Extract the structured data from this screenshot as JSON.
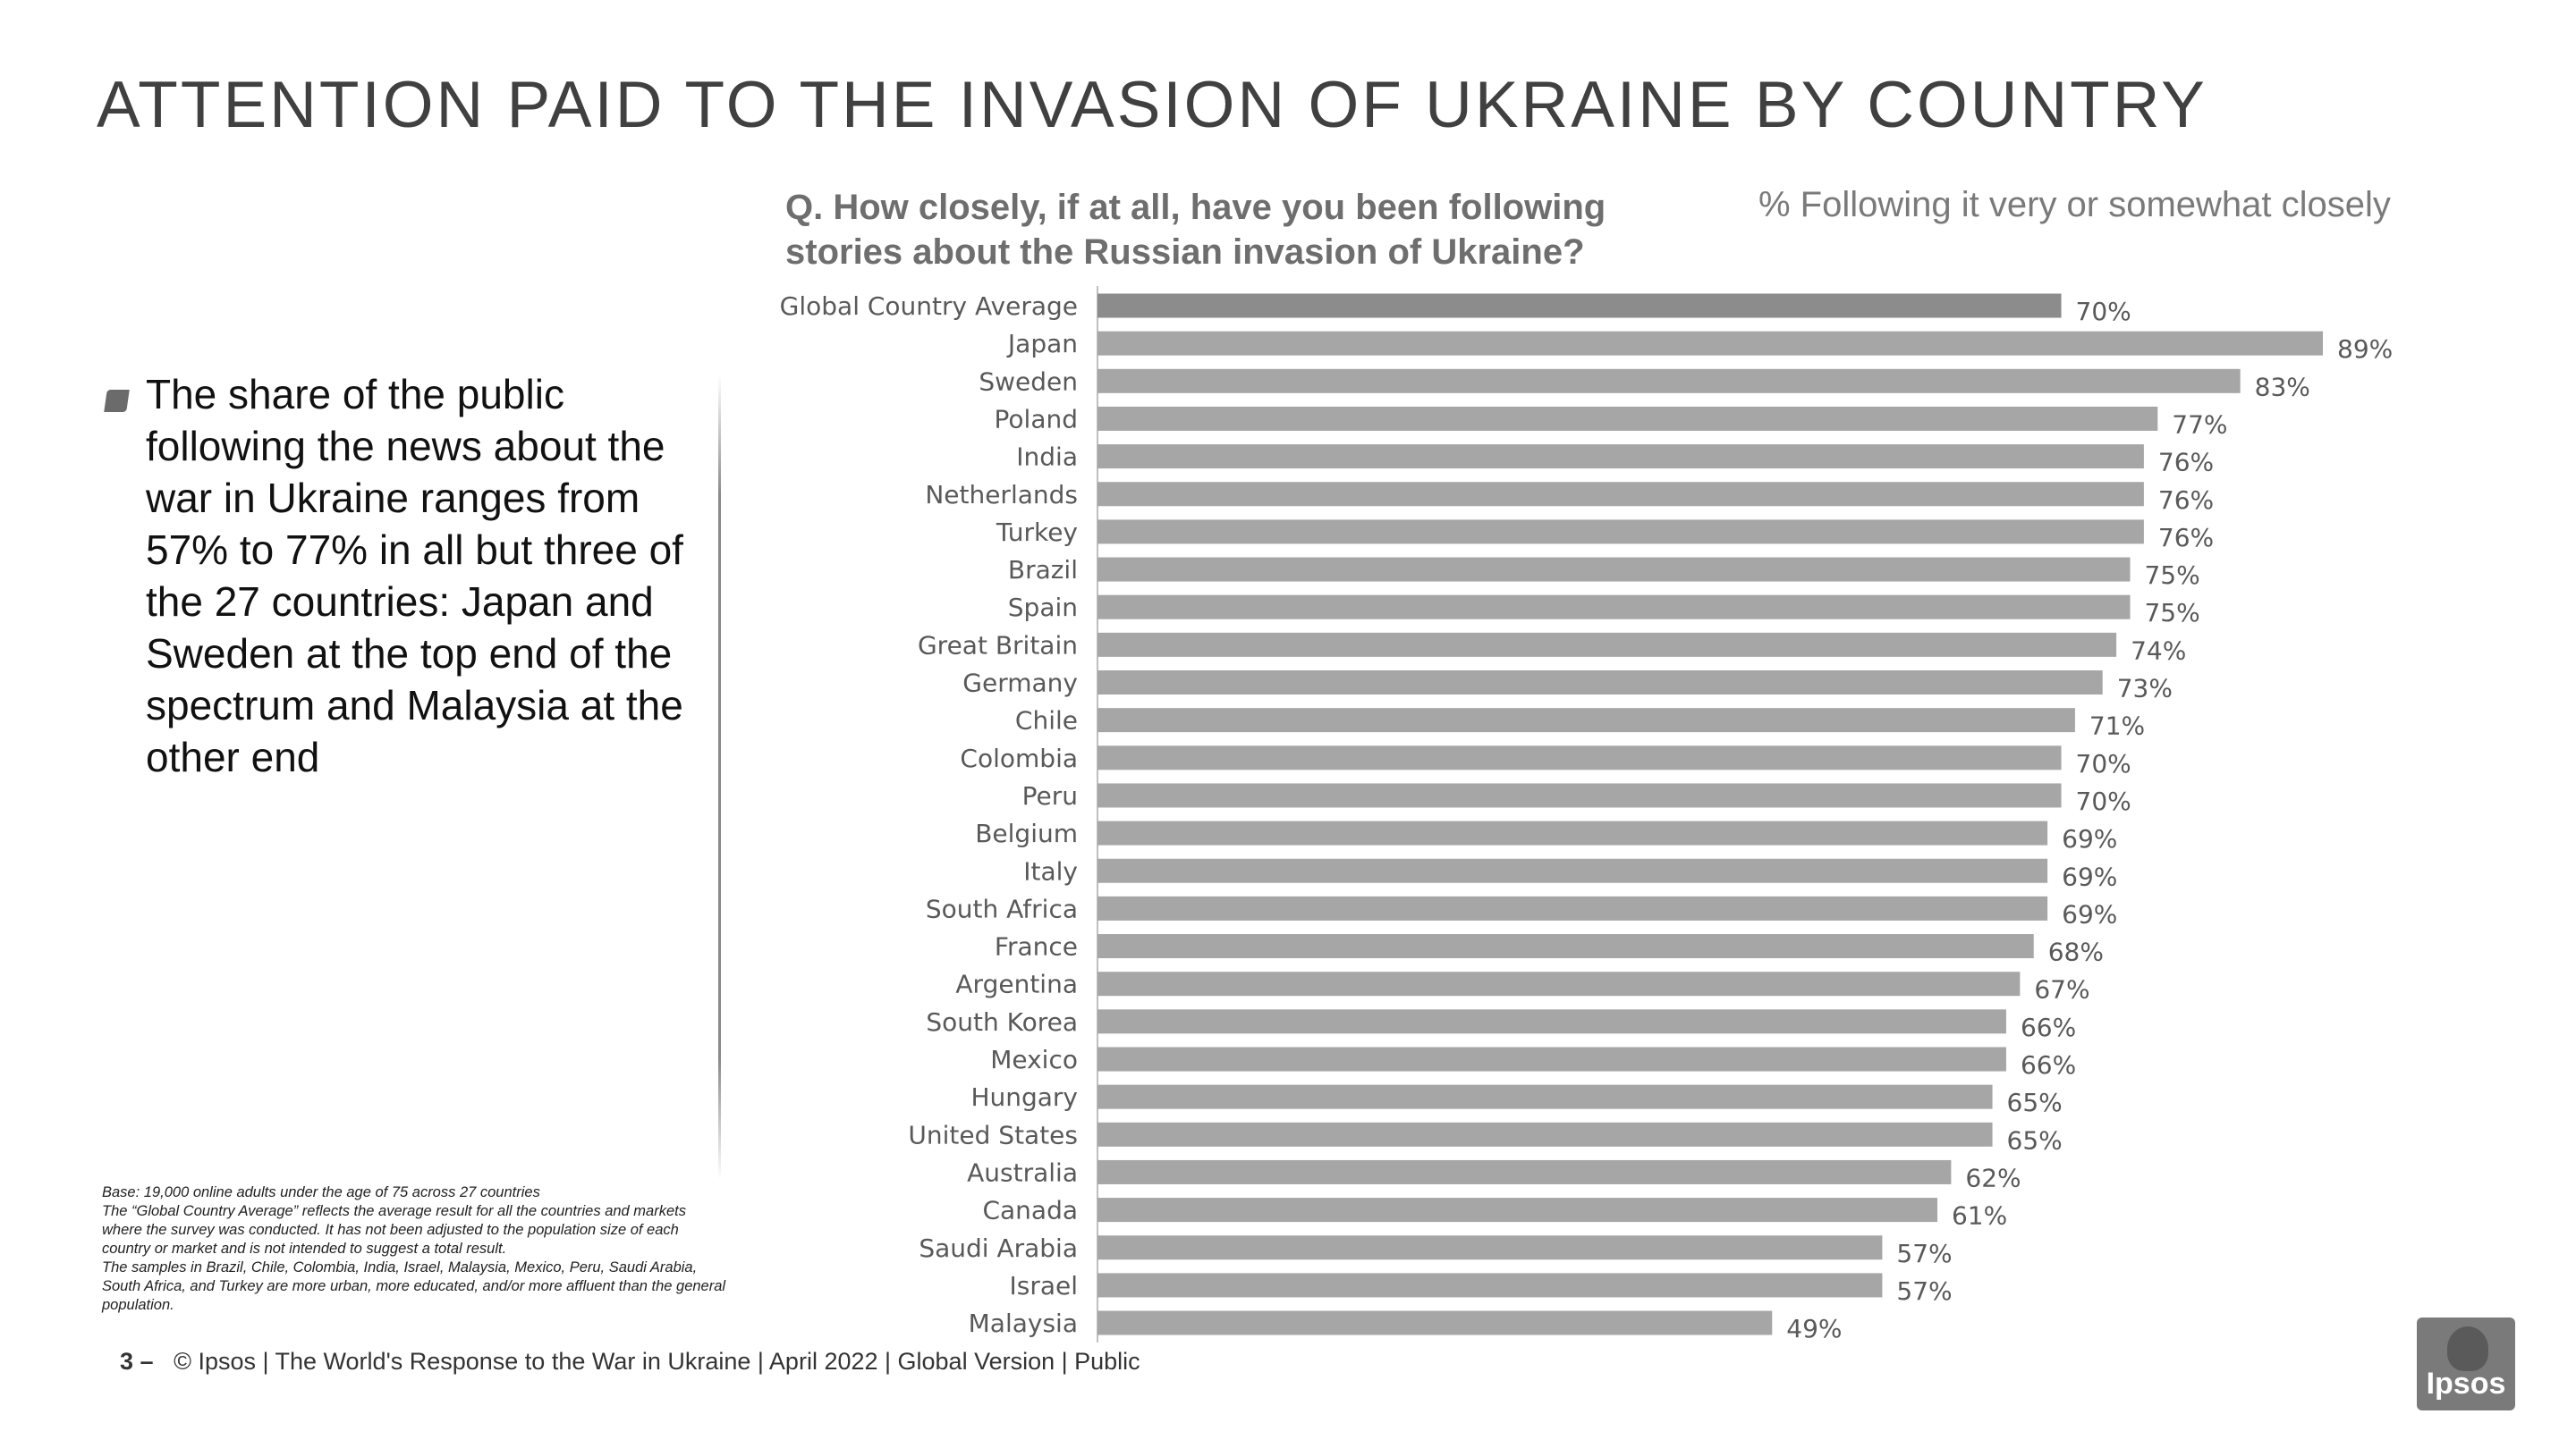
{
  "page": {
    "title": "ATTENTION PAID TO THE INVASION OF UKRAINE BY COUNTRY",
    "question": "Q. How closely, if at all, have you been following stories about the Russian invasion of Ukraine?",
    "measure_label": "% Following it very or somewhat closely",
    "bullet": "The share of the public following the news about the war in Ukraine ranges from 57% to 77% in all but three of the 27 countries: Japan and Sweden at the top end of the spectrum and Malaysia at the other end",
    "footnotes": [
      "Base: 19,000 online adults under the age of 75 across 27 countries",
      "The “Global Country Average” reflects the average result for all the countries and markets where the survey was conducted. It has not been adjusted to the population size of each country or market and is not intended to suggest a total result.",
      "The samples in Brazil, Chile, Colombia, India, Israel, Malaysia, Mexico, Peru, Saudi Arabia,  South Africa, and Turkey are more urban, more educated, and/or more affluent than the general population."
    ],
    "footer_page": "3 –",
    "footer_text": "© Ipsos | The World's Response to the War in Ukraine | April 2022 | Global Version | Public",
    "logo_text": "Ipsos"
  },
  "chart_data": {
    "type": "bar",
    "orientation": "horizontal",
    "categories": [
      "Global Country Average",
      "Japan",
      "Sweden",
      "Poland",
      "India",
      "Netherlands",
      "Turkey",
      "Brazil",
      "Spain",
      "Great Britain",
      "Germany",
      "Chile",
      "Colombia",
      "Peru",
      "Belgium",
      "Italy",
      "South Africa",
      "France",
      "Argentina",
      "South Korea",
      "Mexico",
      "Hungary",
      "United States",
      "Australia",
      "Canada",
      "Saudi Arabia",
      "Israel",
      "Malaysia"
    ],
    "values": [
      70,
      89,
      83,
      77,
      76,
      76,
      76,
      75,
      75,
      74,
      73,
      71,
      70,
      70,
      69,
      69,
      69,
      68,
      67,
      66,
      66,
      65,
      65,
      62,
      61,
      57,
      57,
      49
    ],
    "value_labels": [
      "70%",
      "89%",
      "83%",
      "77%",
      "76%",
      "76%",
      "76%",
      "75%",
      "75%",
      "74%",
      "73%",
      "71%",
      "70%",
      "70%",
      "69%",
      "69%",
      "69%",
      "68%",
      "67%",
      "66%",
      "66%",
      "65%",
      "65%",
      "62%",
      "61%",
      "57%",
      "57%",
      "49%"
    ],
    "title": "% Following it very or somewhat closely",
    "xlim": [
      0,
      89
    ],
    "grid": false,
    "legend": "none",
    "colors": {
      "highlight": "#8c8c8c",
      "bar": "#a6a6a6",
      "axis": "#bfbfbf"
    }
  }
}
